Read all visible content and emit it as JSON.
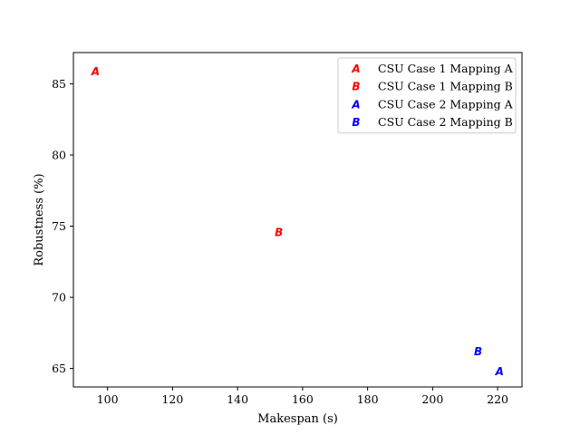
{
  "chart_data": {
    "type": "scatter",
    "title": "",
    "xlabel": "Makespan (s)",
    "ylabel": "Robustness (%)",
    "xlim": [
      89.5,
      227.5
    ],
    "ylim": [
      63.7,
      87.2
    ],
    "xticks": [
      100,
      120,
      140,
      160,
      180,
      200,
      220
    ],
    "yticks": [
      65,
      70,
      75,
      80,
      85
    ],
    "grid": false,
    "legend_position": "top-right",
    "series": [
      {
        "name": "CSU Case 1 Mapping A",
        "marker": "A",
        "color": "#ff0000",
        "points": [
          {
            "x": 96.3,
            "y": 85.9
          }
        ]
      },
      {
        "name": "CSU Case 1 Mapping B",
        "marker": "B",
        "color": "#ff0000",
        "points": [
          {
            "x": 152.7,
            "y": 74.6
          }
        ]
      },
      {
        "name": "CSU Case 2 Mapping A",
        "marker": "A",
        "color": "#0000ff",
        "points": [
          {
            "x": 220.6,
            "y": 64.8
          }
        ]
      },
      {
        "name": "CSU Case 2 Mapping B",
        "marker": "B",
        "color": "#0000ff",
        "points": [
          {
            "x": 214.0,
            "y": 66.2
          }
        ]
      }
    ]
  }
}
